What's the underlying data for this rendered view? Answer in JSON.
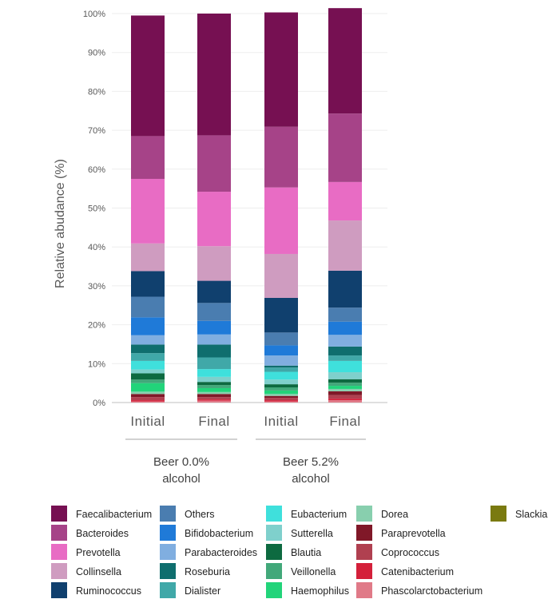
{
  "chart_data": {
    "type": "bar",
    "stacked": true,
    "ylabel": "Relative abudance (%)",
    "ylim": [
      0,
      100
    ],
    "yticks": [
      "0%",
      "10%",
      "20%",
      "30%",
      "40%",
      "50%",
      "60%",
      "70%",
      "80%",
      "90%",
      "100%"
    ],
    "categories": [
      "Initial",
      "Final",
      "Initial",
      "Final"
    ],
    "groups": [
      {
        "label_line1": "Beer 0.0%",
        "label_line2": "alcohol",
        "categories": [
          0,
          1
        ]
      },
      {
        "label_line1": "Beer 5.2%",
        "label_line2": "alcohol",
        "categories": [
          2,
          3
        ]
      }
    ],
    "legend_placement": "bottom",
    "series": [
      {
        "name": "Phascolarctobacterium",
        "color": "#e07a88",
        "values": [
          0.3,
          0.5,
          0.3,
          0.6
        ]
      },
      {
        "name": "Catenibacterium",
        "color": "#d4203a",
        "values": [
          0.3,
          0.3,
          0.3,
          0.4
        ]
      },
      {
        "name": "Coprococcus",
        "color": "#b04050",
        "values": [
          0.8,
          0.6,
          0.6,
          0.9
        ]
      },
      {
        "name": "Paraprevotella",
        "color": "#801828",
        "values": [
          0.8,
          0.8,
          0.5,
          1.0
        ]
      },
      {
        "name": "Dorea",
        "color": "#88cfae",
        "values": [
          0.6,
          0.5,
          0.5,
          0.6
        ]
      },
      {
        "name": "Haemophilus",
        "color": "#22d47a",
        "values": [
          2.2,
          1.0,
          0.9,
          0.8
        ]
      },
      {
        "name": "Veillonella",
        "color": "#42a87a",
        "values": [
          0.9,
          0.8,
          0.8,
          0.8
        ]
      },
      {
        "name": "Blautia",
        "color": "#0d6a40",
        "values": [
          1.6,
          0.8,
          0.8,
          0.9
        ]
      },
      {
        "name": "Sutterella",
        "color": "#7fd0cc",
        "values": [
          1.0,
          1.3,
          1.2,
          1.8
        ]
      },
      {
        "name": "Eubacterium",
        "color": "#3fe0dc",
        "values": [
          2.2,
          2.0,
          2.0,
          2.9
        ]
      },
      {
        "name": "Dialister",
        "color": "#40a8a8",
        "values": [
          2.0,
          3.0,
          1.1,
          1.4
        ]
      },
      {
        "name": "Roseburia",
        "color": "#0f6e6e",
        "values": [
          2.2,
          3.3,
          0.5,
          2.3
        ]
      },
      {
        "name": "Parabacteroides",
        "color": "#80aee0",
        "values": [
          2.4,
          2.6,
          2.6,
          3.0
        ]
      },
      {
        "name": "Bifidobacterium",
        "color": "#1f7ad8",
        "values": [
          4.6,
          3.5,
          2.6,
          3.4
        ]
      },
      {
        "name": "Others",
        "color": "#4a7db0",
        "values": [
          5.3,
          4.6,
          3.3,
          3.6
        ]
      },
      {
        "name": "Ruminococcus",
        "color": "#10406e",
        "values": [
          6.6,
          5.7,
          8.9,
          9.5
        ]
      },
      {
        "name": "Collinsella",
        "color": "#cf9cc0",
        "values": [
          7.1,
          8.9,
          11.3,
          12.9
        ]
      },
      {
        "name": "Prevotella",
        "color": "#e86cc4",
        "values": [
          16.6,
          14.0,
          17.1,
          9.9
        ]
      },
      {
        "name": "Bacteroides",
        "color": "#a64388",
        "values": [
          11.0,
          14.5,
          15.6,
          17.6
        ]
      },
      {
        "name": "Faecalibacterium",
        "color": "#761052",
        "values": [
          31.0,
          31.3,
          29.4,
          27.1
        ]
      },
      {
        "name": "Slackia",
        "color": "#7a7a10",
        "values": [
          0,
          0,
          0,
          0
        ]
      }
    ],
    "legend_columns": [
      [
        "Faecalibacterium",
        "Bacteroides",
        "Prevotella",
        "Collinsella",
        "Ruminococcus"
      ],
      [
        "Others",
        "Bifidobacterium",
        "Parabacteroides",
        "Roseburia",
        "Dialister"
      ],
      [
        "Eubacterium",
        "Sutterella",
        "Blautia",
        "Veillonella",
        "Haemophilus"
      ],
      [
        "Dorea",
        "Paraprevotella",
        "Coprococcus",
        "Catenibacterium",
        "Phascolarctobacterium"
      ],
      [
        "Slackia"
      ]
    ]
  }
}
